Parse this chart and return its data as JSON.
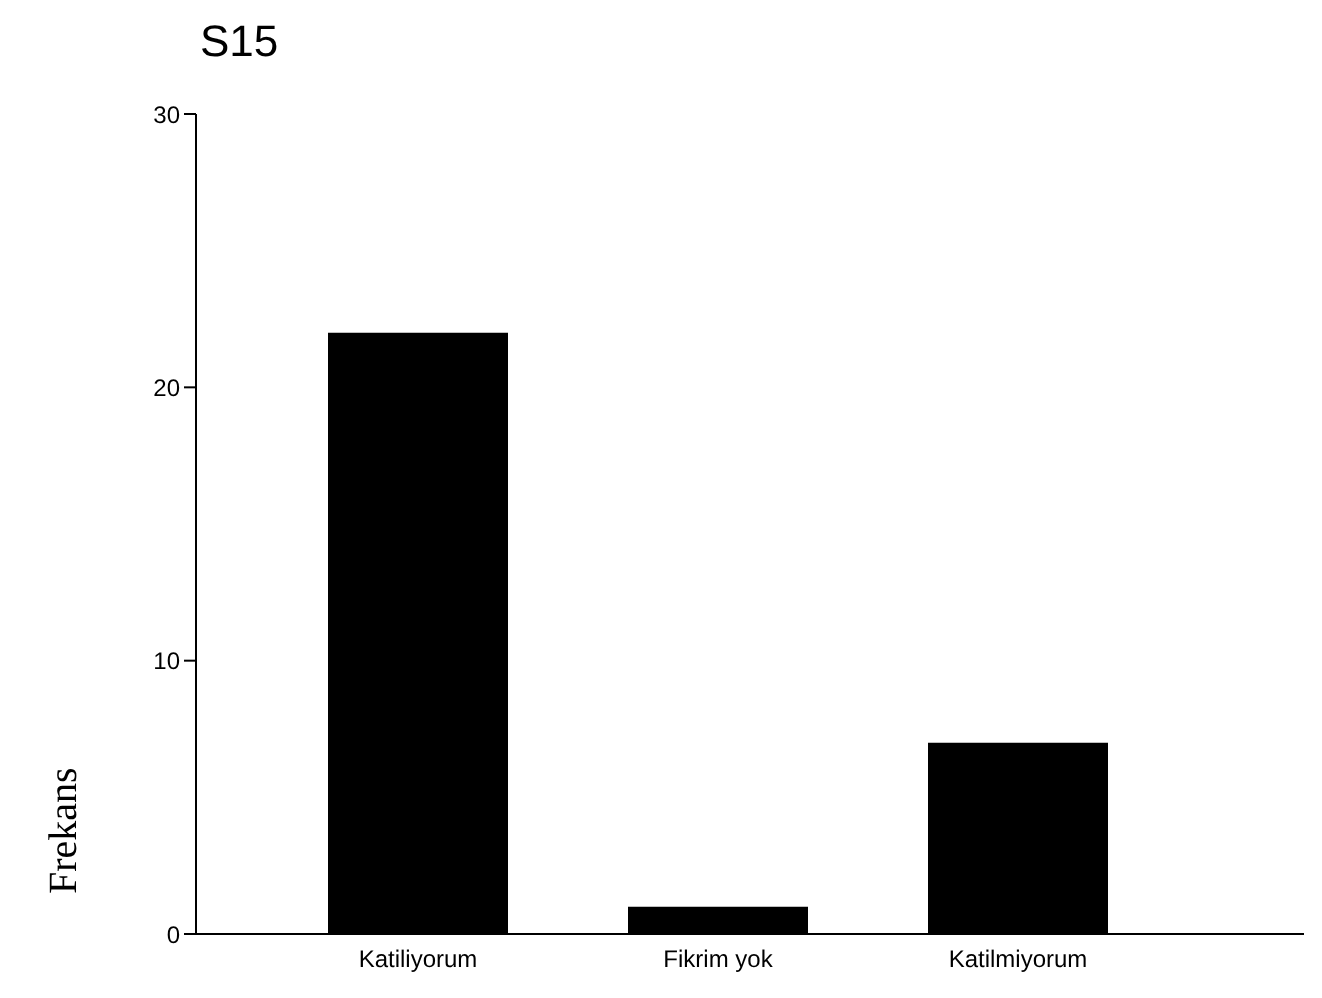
{
  "chart_data": {
    "type": "bar",
    "title": "S15",
    "ylabel": "Frekans",
    "categories": [
      "Katiliyorum",
      "Fikrim yok",
      "Katilmiyorum"
    ],
    "values": [
      22,
      1,
      7
    ],
    "color": "#000000",
    "ylim": [
      0,
      30
    ],
    "yticks": [
      0,
      10,
      20,
      30
    ],
    "grid": false,
    "legend": false
  }
}
